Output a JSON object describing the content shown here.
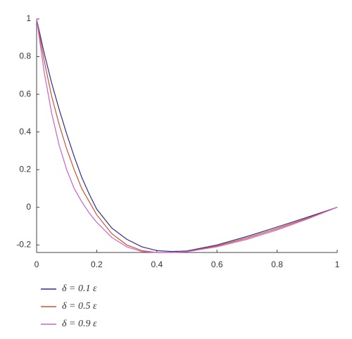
{
  "chart_data": {
    "type": "line",
    "x": [
      0,
      0.025,
      0.05,
      0.075,
      0.1,
      0.125,
      0.15,
      0.175,
      0.2,
      0.25,
      0.3,
      0.35,
      0.4,
      0.45,
      0.5,
      0.6,
      0.7,
      0.8,
      0.9,
      1
    ],
    "series": [
      {
        "name": "δ = 0.1 ε",
        "color": "#2e2c8e",
        "values": [
          1,
          0.82,
          0.66,
          0.52,
          0.39,
          0.27,
          0.16,
          0.07,
          -0.01,
          -0.11,
          -0.17,
          -0.21,
          -0.23,
          -0.235,
          -0.232,
          -0.2,
          -0.155,
          -0.105,
          -0.053,
          0
        ]
      },
      {
        "name": "δ = 0.5 ε",
        "color": "#d2532c",
        "values": [
          1,
          0.78,
          0.59,
          0.44,
          0.31,
          0.2,
          0.1,
          0.03,
          -0.04,
          -0.14,
          -0.2,
          -0.23,
          -0.24,
          -0.24,
          -0.235,
          -0.205,
          -0.163,
          -0.113,
          -0.058,
          0
        ]
      },
      {
        "name": "δ = 0.9 ε",
        "color": "#c862c8",
        "values": [
          1,
          0.72,
          0.5,
          0.33,
          0.2,
          0.1,
          0.03,
          -0.03,
          -0.08,
          -0.16,
          -0.21,
          -0.235,
          -0.24,
          -0.24,
          -0.236,
          -0.21,
          -0.17,
          -0.12,
          -0.063,
          0
        ]
      }
    ],
    "xlim": [
      0,
      1
    ],
    "ylim": [
      -0.24,
      1
    ],
    "xticks": [
      0,
      0.2,
      0.4,
      0.6,
      0.8,
      1
    ],
    "yticks": [
      -0.2,
      0,
      0.2,
      0.4,
      0.6,
      0.8,
      1
    ]
  }
}
